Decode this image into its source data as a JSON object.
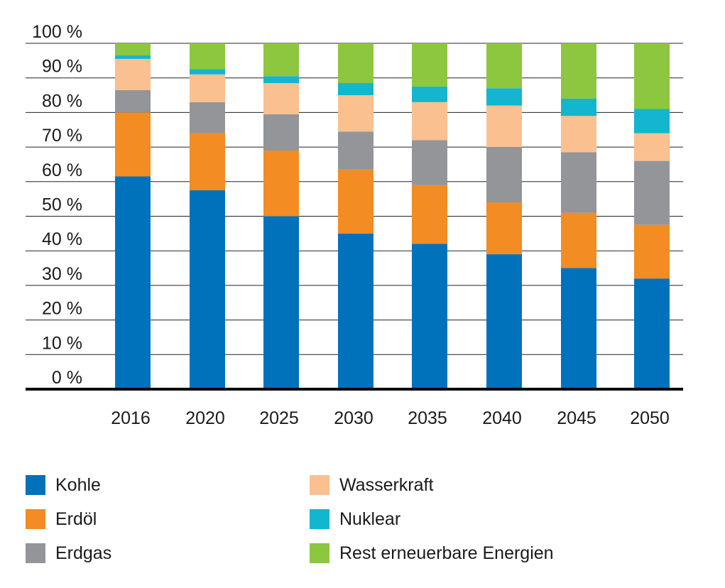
{
  "chart_data": {
    "type": "bar",
    "stacked": true,
    "title": "",
    "xlabel": "",
    "ylabel": "",
    "ylim": [
      0,
      100
    ],
    "y_ticks": [
      "0 %",
      "10 %",
      "20 %",
      "30 %",
      "40 %",
      "50 %",
      "60 %",
      "70 %",
      "80 %",
      "90 %",
      "100 %"
    ],
    "grid": true,
    "legend_position": "bottom",
    "categories": [
      "2016",
      "2020",
      "2025",
      "2030",
      "2035",
      "2040",
      "2045",
      "2050"
    ],
    "series": [
      {
        "name": "Kohle",
        "color": "#0072bc",
        "values": [
          61.5,
          57.5,
          50,
          45,
          42,
          39,
          35,
          32
        ]
      },
      {
        "name": "Erdöl",
        "color": "#f28c23",
        "values": [
          18.5,
          16.5,
          19,
          18.5,
          17,
          15,
          16,
          15.5
        ]
      },
      {
        "name": "Erdgas",
        "color": "#939598",
        "values": [
          6.5,
          9,
          10.5,
          11,
          13,
          16,
          17.5,
          18.5
        ]
      },
      {
        "name": "Wasserkraft",
        "color": "#fac090",
        "values": [
          9,
          8,
          9,
          10.5,
          11,
          12,
          10.5,
          8
        ]
      },
      {
        "name": "Nuklear",
        "color": "#13b5cf",
        "values": [
          1,
          1.5,
          2,
          3.5,
          4.5,
          5,
          5,
          7
        ]
      },
      {
        "name": "Rest erneuerbare Energien",
        "color": "#8dc63f",
        "values": [
          3.5,
          7.5,
          9.5,
          11.5,
          12.5,
          13,
          16,
          19
        ]
      }
    ]
  }
}
